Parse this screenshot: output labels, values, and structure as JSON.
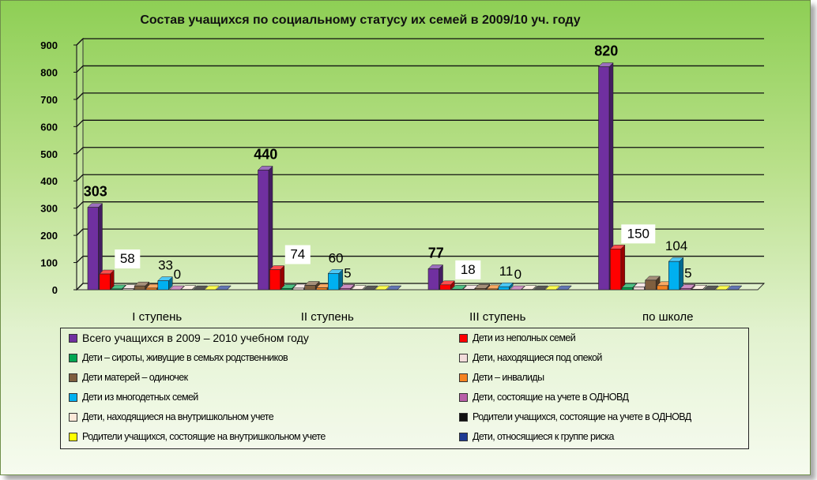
{
  "chart_data": {
    "type": "bar",
    "title": "Состав учащихся по социальному статусу их семей в 2009/10 уч. году",
    "categories": [
      "I ступень",
      "II ступень",
      "III ступень",
      "по  школе"
    ],
    "ylim": [
      0,
      900
    ],
    "yticks": [
      0,
      100,
      200,
      300,
      400,
      500,
      600,
      700,
      800,
      900
    ],
    "grid": true,
    "legend_position": "bottom",
    "series": [
      {
        "name": "Всего учащихся в 2009 – 2010 учебном году",
        "color": "#7030a0",
        "values": [
          303,
          440,
          77,
          820
        ]
      },
      {
        "name": "Дети из неполных семей",
        "color": "#ff0000",
        "values": [
          58,
          74,
          18,
          150
        ]
      },
      {
        "name": "Дети – сироты, живущие в семьях родственников",
        "color": "#00a651",
        "values": [
          3,
          5,
          2,
          8
        ]
      },
      {
        "name": "Дети, находящиеся под опекой",
        "color": "#f2dcdb",
        "values": [
          4,
          6,
          2,
          10
        ]
      },
      {
        "name": "Дети матерей – одиночек",
        "color": "#7f5f3f",
        "values": [
          14,
          16,
          5,
          35
        ]
      },
      {
        "name": "Дети – инвалиды",
        "color": "#f58220",
        "values": [
          6,
          7,
          3,
          15
        ]
      },
      {
        "name": "Дети из многодетных семей",
        "color": "#00b0f0",
        "values": [
          33,
          60,
          11,
          104
        ]
      },
      {
        "name": "Дети, состоящие на учете в ОДНОВД",
        "color": "#b85fa8",
        "values": [
          0,
          5,
          0,
          5
        ]
      },
      {
        "name": "Дети, находящиеся на внутришкольном учете",
        "color": "#fde9d9",
        "values": [
          1,
          1,
          1,
          2
        ]
      },
      {
        "name": "Родители учащихся, состоящие на учете в ОДНОВД",
        "color": "#111111",
        "values": [
          0,
          0,
          0,
          0
        ]
      },
      {
        "name": "Родители учащихся, состоящие на внутришкольном учете",
        "color": "#ffff00",
        "values": [
          0,
          0,
          0,
          0
        ]
      },
      {
        "name": "Дети, относящиеся к группе риска",
        "color": "#1f3a93",
        "values": [
          0,
          0,
          0,
          0
        ]
      }
    ],
    "data_labels": [
      {
        "series": 0,
        "category": 0,
        "text": "303",
        "bold": true
      },
      {
        "series": 1,
        "category": 0,
        "text": "58",
        "bold": false,
        "box": true
      },
      {
        "series": 6,
        "category": 0,
        "text": "33",
        "bold": false
      },
      {
        "series": 7,
        "category": 0,
        "text": "0",
        "bold": false
      },
      {
        "series": 0,
        "category": 1,
        "text": "440",
        "bold": true
      },
      {
        "series": 1,
        "category": 1,
        "text": "74",
        "bold": false,
        "box": true
      },
      {
        "series": 6,
        "category": 1,
        "text": "60",
        "bold": false
      },
      {
        "series": 7,
        "category": 1,
        "text": "5",
        "bold": false
      },
      {
        "series": 0,
        "category": 2,
        "text": "77",
        "bold": true
      },
      {
        "series": 1,
        "category": 2,
        "text": "18",
        "bold": false,
        "box": true
      },
      {
        "series": 6,
        "category": 2,
        "text": "11",
        "bold": false
      },
      {
        "series": 7,
        "category": 2,
        "text": "0",
        "bold": false
      },
      {
        "series": 0,
        "category": 3,
        "text": "820",
        "bold": true
      },
      {
        "series": 1,
        "category": 3,
        "text": "150",
        "bold": false,
        "box": true
      },
      {
        "series": 6,
        "category": 3,
        "text": "104",
        "bold": false
      },
      {
        "series": 7,
        "category": 3,
        "text": "5",
        "bold": false
      }
    ]
  }
}
